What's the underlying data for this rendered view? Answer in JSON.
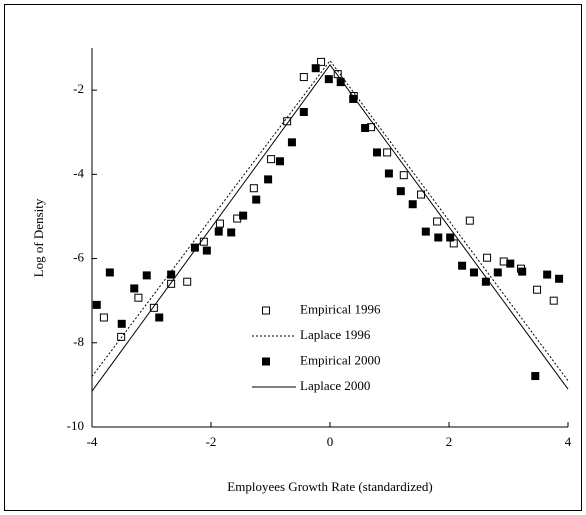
{
  "chart_data": {
    "type": "scatter",
    "x_label": "Employees Growth Rate (standardized)",
    "y_label": "Log of Density",
    "xlim": [
      -4,
      4
    ],
    "xticks": [
      -4,
      -2,
      0,
      2,
      4
    ],
    "ylim": [
      -10,
      -1
    ],
    "yticks": [
      -10,
      -8,
      -6,
      -4,
      -2
    ],
    "legend": "lower center",
    "series": [
      {
        "name": "Empirical 1996",
        "color": "#000000",
        "marker": "open-square",
        "x": [
          -3.8,
          -3.51,
          -3.22,
          -2.96,
          -2.67,
          -2.4,
          -2.12,
          -1.85,
          -1.56,
          -1.28,
          -0.99,
          -0.72,
          -0.44,
          -0.15,
          0.13,
          0.4,
          0.69,
          0.96,
          1.24,
          1.53,
          1.8,
          2.08,
          2.35,
          2.64,
          2.92,
          3.21,
          3.48,
          3.76
        ],
        "values": [
          -7.4,
          -7.86,
          -6.93,
          -7.17,
          -6.6,
          -6.55,
          -5.6,
          -5.17,
          -5.05,
          -4.33,
          -3.64,
          -2.74,
          -1.69,
          -1.33,
          -1.62,
          -2.14,
          -2.88,
          -3.48,
          -4.02,
          -4.48,
          -5.12,
          -5.64,
          -5.1,
          -5.98,
          -6.07,
          -6.24,
          -6.74,
          -7.0
        ]
      },
      {
        "name": "Laplace 1996",
        "color": "#000000",
        "line_style": "dotted",
        "x": [
          -4,
          0,
          4
        ],
        "values": [
          -8.8,
          -1.3,
          -8.9
        ]
      },
      {
        "name": "Empirical 2000",
        "color": "#000000",
        "marker": "filled-square",
        "x": [
          -3.92,
          -3.7,
          -3.5,
          -3.29,
          -3.08,
          -2.87,
          -2.67,
          -2.27,
          -2.07,
          -1.87,
          -1.66,
          -1.46,
          -1.24,
          -1.04,
          -0.84,
          -0.64,
          -0.44,
          -0.24,
          -0.02,
          0.18,
          0.39,
          0.59,
          0.79,
          0.99,
          1.19,
          1.39,
          1.61,
          1.82,
          2.02,
          2.22,
          2.42,
          2.62,
          2.82,
          3.03,
          3.23,
          3.45,
          3.65,
          3.85
        ],
        "values": [
          -7.1,
          -6.33,
          -7.55,
          -6.71,
          -6.4,
          -7.4,
          -6.38,
          -5.74,
          -5.81,
          -5.36,
          -5.38,
          -4.98,
          -4.6,
          -4.12,
          -3.69,
          -3.24,
          -2.52,
          -1.48,
          -1.74,
          -1.81,
          -2.21,
          -2.9,
          -3.48,
          -3.98,
          -4.4,
          -4.71,
          -5.36,
          -5.5,
          -5.5,
          -6.17,
          -6.33,
          -6.55,
          -6.33,
          -6.12,
          -6.31,
          -8.79,
          -6.38,
          -6.48
        ]
      },
      {
        "name": "Laplace 2000",
        "color": "#000000",
        "line_style": "solid",
        "x": [
          -4,
          0,
          4
        ],
        "values": [
          -9.15,
          -1.4,
          -9.1
        ]
      }
    ]
  }
}
